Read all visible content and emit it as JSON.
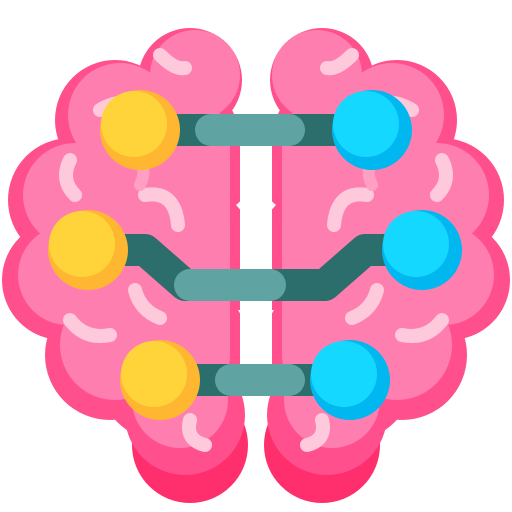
{
  "icon": {
    "name": "brain-neural-network-icon",
    "colors": {
      "lobe_light": "#ff7eb0",
      "lobe_mid": "#ff4f8c",
      "lobe_dark": "#ff2f6e",
      "fold_highlight": "#ffc9dc",
      "fold_soft": "#ff9fc2",
      "circuit_line_dark": "#2b6e6b",
      "circuit_line_light": "#5fa3a3",
      "node_left": "#ffd43b",
      "node_left_shade": "#ffb732",
      "node_right": "#14d8ff",
      "node_right_shade": "#00b7f0"
    }
  }
}
